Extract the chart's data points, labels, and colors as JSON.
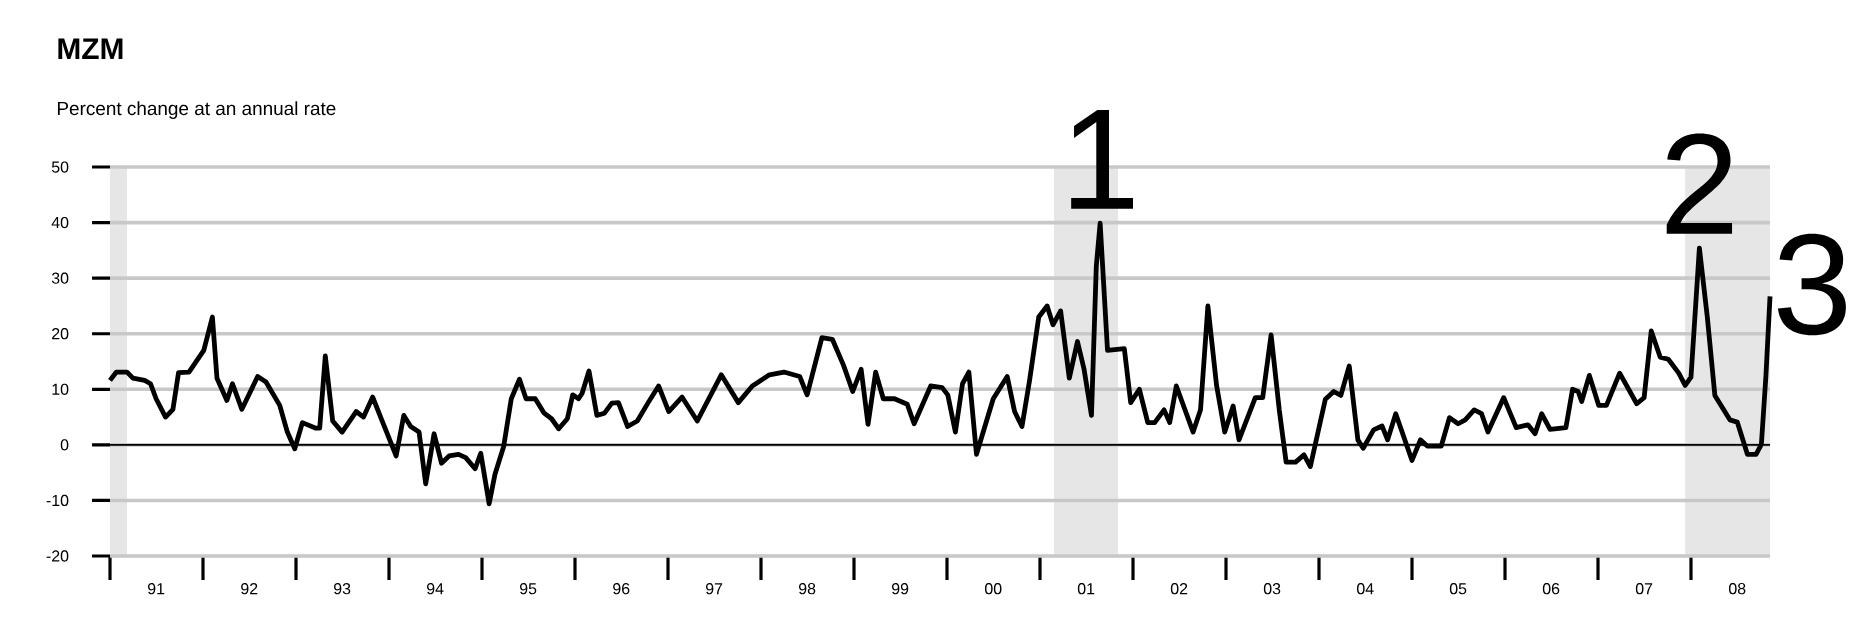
{
  "chart_data": {
    "type": "line",
    "title": "MZM",
    "subtitle": "Percent change at an annual rate",
    "x": [
      "1991-01-01",
      "1991-01-26",
      "1991-03-09",
      "1991-04-01",
      "1991-05-17",
      "1991-06-09",
      "1991-07-01",
      "1991-08-07",
      "1991-09-05",
      "1991-09-27",
      "1991-11-07",
      "1992-01-04",
      "1992-02-07",
      "1992-02-25",
      "1992-04-04",
      "1992-04-26",
      "1992-06-02",
      "1992-08-03",
      "1992-09-05",
      "1992-10-29",
      "1992-11-28",
      "1992-12-27",
      "1993-01-26",
      "1993-03-20",
      "1993-04-04",
      "1993-04-26",
      "1993-05-25",
      "1993-07-01",
      "1993-08-25",
      "1993-09-23",
      "1993-10-29",
      "1993-12-05",
      "1994-01-29",
      "1994-02-28",
      "1994-03-27",
      "1994-04-29",
      "1994-05-25",
      "1994-06-27",
      "1994-07-26",
      "1994-08-25",
      "1994-10-01",
      "1994-10-29",
      "1994-12-05",
      "1994-12-27",
      "1995-01-29",
      "1995-02-21",
      "1995-03-27",
      "1995-04-26",
      "1995-05-28",
      "1995-06-23",
      "1995-07-29",
      "1995-09-02",
      "1995-10-01",
      "1995-10-29",
      "1995-12-02",
      "1995-12-23",
      "1996-01-15",
      "1996-01-29",
      "1996-02-25",
      "1996-03-27",
      "1996-04-26",
      "1996-05-25",
      "1996-06-20",
      "1996-07-26",
      "1996-09-02",
      "1996-10-15",
      "1996-11-25",
      "1997-01-04",
      "1997-02-25",
      "1997-04-26",
      "1997-07-29",
      "1997-10-04",
      "1997-11-28",
      "1998-02-03",
      "1998-04-01",
      "1998-06-02",
      "1998-07-01",
      "1998-08-28",
      "1998-10-08",
      "1998-11-21",
      "1998-12-27",
      "1999-01-29",
      "1999-02-25",
      "1999-03-27",
      "1999-04-26",
      "1999-06-09",
      "1999-07-29",
      "1999-08-25",
      "1999-10-29",
      "1999-12-13",
      "2000-01-04",
      "2000-02-03",
      "2000-03-02",
      "2000-03-27",
      "2000-04-26",
      "2000-07-01",
      "2000-08-25",
      "2000-09-23",
      "2000-10-22",
      "2000-11-21",
      "2000-12-27",
      "2001-01-29",
      "2001-02-21",
      "2001-03-23",
      "2001-04-26",
      "2001-05-28",
      "2001-06-23",
      "2001-07-22",
      "2001-08-10",
      "2001-08-25",
      "2001-09-23",
      "2001-11-28",
      "2001-12-23",
      "2002-01-26",
      "2002-02-28",
      "2002-03-27",
      "2002-05-03",
      "2002-05-25",
      "2002-06-20",
      "2002-08-25",
      "2002-09-23",
      "2002-10-22",
      "2002-11-25",
      "2002-12-27",
      "2003-01-29",
      "2003-02-21",
      "2003-04-26",
      "2003-05-25",
      "2003-06-27",
      "2003-07-29",
      "2003-08-25",
      "2003-10-01",
      "2003-11-03",
      "2003-11-28",
      "2004-01-26",
      "2004-02-28",
      "2004-03-27",
      "2004-04-29",
      "2004-06-02",
      "2004-06-23",
      "2004-08-03",
      "2004-09-05",
      "2004-09-27",
      "2004-10-29",
      "2005-01-01",
      "2005-02-03",
      "2005-03-02",
      "2005-04-26",
      "2005-05-28",
      "2005-07-01",
      "2005-07-29",
      "2005-09-02",
      "2005-10-01",
      "2005-10-26",
      "2005-12-27",
      "2006-02-14",
      "2006-04-01",
      "2006-04-29",
      "2006-05-25",
      "2006-06-27",
      "2006-08-28",
      "2006-09-23",
      "2006-10-15",
      "2006-10-29",
      "2006-11-28",
      "2007-01-04",
      "2007-02-03",
      "2007-03-27",
      "2007-06-02",
      "2007-07-01",
      "2007-07-29",
      "2007-09-02",
      "2007-10-04",
      "2007-11-14",
      "2007-12-09",
      "2008-01-01",
      "2008-02-03",
      "2008-03-05",
      "2008-04-04",
      "2008-06-02",
      "2008-07-01",
      "2008-08-10",
      "2008-09-13",
      "2008-10-04",
      "2008-10-22",
      "2008-11-07"
    ],
    "series": [
      {
        "color": "#000000",
        "values": [
          11.6,
          13.1,
          13.1,
          12,
          11.6,
          11,
          8.3,
          5,
          6.4,
          13,
          13.1,
          17,
          23,
          12,
          8,
          11,
          6.4,
          12.3,
          11.3,
          7.1,
          2.3,
          -0.7,
          4,
          3,
          3,
          16,
          4.3,
          2.3,
          6,
          5,
          8.6,
          4.3,
          -2,
          5.3,
          3.3,
          2.3,
          -7,
          2,
          -3.3,
          -2,
          -1.7,
          -2.3,
          -4.3,
          -1.5,
          -10.6,
          -5.3,
          -0.3,
          8.3,
          11.8,
          8.3,
          8.3,
          5.7,
          4.7,
          2.9,
          4.7,
          9,
          8.3,
          9.3,
          13.3,
          5.3,
          5.7,
          7.5,
          7.6,
          3.3,
          4.3,
          7.6,
          10.6,
          6,
          8.6,
          4.3,
          12.6,
          7.6,
          10.6,
          12.6,
          13.1,
          12.3,
          9,
          19.3,
          19,
          14.3,
          9.6,
          13.6,
          3.7,
          13.1,
          8.3,
          8.3,
          7.3,
          3.8,
          10.6,
          10.3,
          9,
          2.3,
          11,
          13.1,
          -1.7,
          8.3,
          12.3,
          6,
          3.3,
          11.6,
          23,
          25,
          21.6,
          24.1,
          12,
          18.6,
          13.6,
          5.3,
          32.2,
          39.9,
          17,
          17.3,
          7.6,
          10,
          4,
          4,
          6.3,
          4,
          10.6,
          2.3,
          6.3,
          25,
          10.7,
          2.3,
          7,
          0.9,
          8.5,
          8.5,
          19.8,
          6.3,
          -3.1,
          -3.1,
          -1.8,
          -3.9,
          8.2,
          9.6,
          8.9,
          14.2,
          0.9,
          -0.6,
          2.7,
          3.4,
          0.9,
          5.6,
          -2.8,
          0.9,
          -0.2,
          -0.2,
          4.9,
          3.8,
          4.5,
          6.3,
          5.6,
          2.3,
          8.5,
          3.1,
          3.6,
          2,
          5.6,
          2.8,
          3.1,
          10,
          9.6,
          7.8,
          12.5,
          7.1,
          7.1,
          12.9,
          7.4,
          8.5,
          20.5,
          15.8,
          15.4,
          12.9,
          10.7,
          12.2,
          35.4,
          23.1,
          8.9,
          4.5,
          4.1,
          -1.7,
          -1.7,
          0.1,
          12.5,
          26.7
        ]
      }
    ],
    "xlim": [
      "1991-01-01",
      "2008-11-07"
    ],
    "ylim": [
      -20,
      50
    ],
    "yticks": [
      -20,
      -10,
      0,
      10,
      20,
      30,
      40,
      50
    ],
    "xticks": [
      {
        "value": "1991-07-01",
        "label": "91"
      },
      {
        "value": "1992-07-01",
        "label": "92"
      },
      {
        "value": "1993-07-01",
        "label": "93"
      },
      {
        "value": "1994-07-01",
        "label": "94"
      },
      {
        "value": "1995-07-01",
        "label": "95"
      },
      {
        "value": "1996-07-01",
        "label": "96"
      },
      {
        "value": "1997-07-01",
        "label": "97"
      },
      {
        "value": "1998-07-01",
        "label": "98"
      },
      {
        "value": "1999-07-01",
        "label": "99"
      },
      {
        "value": "2000-07-01",
        "label": "00"
      },
      {
        "value": "2001-07-01",
        "label": "01"
      },
      {
        "value": "2002-07-01",
        "label": "02"
      },
      {
        "value": "2003-07-01",
        "label": "03"
      },
      {
        "value": "2004-07-01",
        "label": "04"
      },
      {
        "value": "2005-07-01",
        "label": "05"
      },
      {
        "value": "2006-07-01",
        "label": "06"
      },
      {
        "value": "2007-07-01",
        "label": "07"
      },
      {
        "value": "2008-07-01",
        "label": "08"
      }
    ],
    "grid": "y",
    "ref_lines": [
      {
        "axis": "y",
        "value": 0,
        "color": "#000000"
      }
    ],
    "bands": [
      {
        "axis": "x",
        "from": "1991-01-01",
        "to": "1991-03-09",
        "color": "#e6e6e6"
      },
      {
        "axis": "x",
        "from": "2001-02-25",
        "to": "2001-11-03",
        "color": "#e6e6e6"
      },
      {
        "axis": "x",
        "from": "2007-12-09",
        "to": "2008-11-07",
        "color": "#e6e6e6"
      }
    ],
    "annotations": [
      {
        "text": "1",
        "x": "2001-08-25",
        "y": 39.9
      },
      {
        "text": "2",
        "x": "2008-02-03",
        "y": 35.4
      },
      {
        "text": "3",
        "x": "2008-11-07",
        "y": 26.7
      }
    ]
  }
}
